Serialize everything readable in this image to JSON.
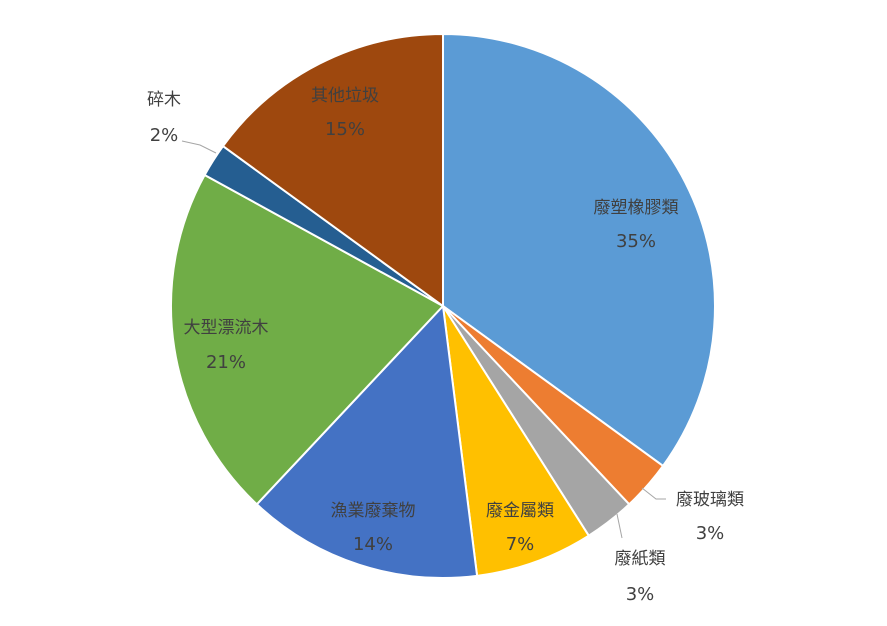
{
  "chart_data": {
    "type": "pie",
    "title": "",
    "slices": [
      {
        "name": "廢塑橡膠類",
        "value": 35,
        "label": "35%",
        "color": "#5B9BD5"
      },
      {
        "name": "廢玻璃類",
        "value": 3,
        "label": "3%",
        "color": "#ED7D31"
      },
      {
        "name": "廢紙類",
        "value": 3,
        "label": "3%",
        "color": "#A5A5A5"
      },
      {
        "name": "廢金屬類",
        "value": 7,
        "label": "7%",
        "color": "#FFC000"
      },
      {
        "name": "漁業廢棄物",
        "value": 14,
        "label": "14%",
        "color": "#4472C4"
      },
      {
        "name": "大型漂流木",
        "value": 21,
        "label": "21%",
        "color": "#70AD47"
      },
      {
        "name": "碎木",
        "value": 2,
        "label": "2%",
        "color": "#255E91"
      },
      {
        "name": "其他垃圾",
        "value": 15,
        "label": "15%",
        "color": "#9E480E"
      }
    ],
    "start_angle": "12 o'clock",
    "direction": "clockwise",
    "legend": "none",
    "data_labels": "category name and percentage"
  }
}
